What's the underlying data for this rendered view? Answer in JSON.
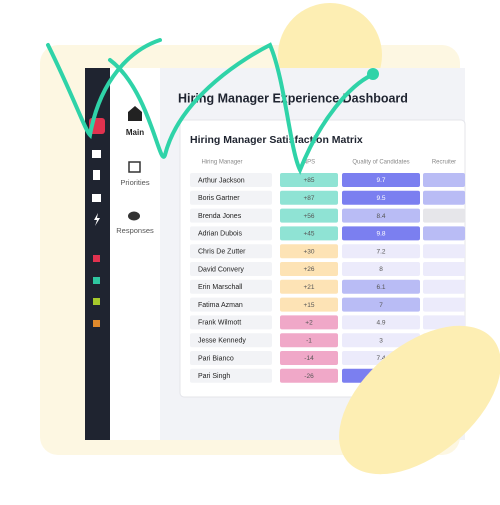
{
  "nav": {
    "items": [
      "Main",
      "Priorities",
      "Responses"
    ]
  },
  "header": {
    "title": "Hiring Manager Experience Dashboard"
  },
  "card": {
    "title": "Hiring Manager Satisfaction Matrix"
  },
  "table": {
    "columns": [
      "Hiring Manager",
      "NPS",
      "Quality of Candidates",
      "Recruiter"
    ],
    "rows": [
      {
        "name": "Arthur Jackson",
        "nps": "+85",
        "quality": "9.7"
      },
      {
        "name": "Boris Gartner",
        "nps": "+87",
        "quality": "9.5"
      },
      {
        "name": "Brenda Jones",
        "nps": "+56",
        "quality": "8.4"
      },
      {
        "name": "Adrian Dubois",
        "nps": "+45",
        "quality": "9.8"
      },
      {
        "name": "Chris De Zutter",
        "nps": "+30",
        "quality": "7.2"
      },
      {
        "name": "David Convery",
        "nps": "+26",
        "quality": "8"
      },
      {
        "name": "Erin Marschall",
        "nps": "+21",
        "quality": "6.1"
      },
      {
        "name": "Fatima Azman",
        "nps": "+15",
        "quality": "7"
      },
      {
        "name": "Frank Wilmott",
        "nps": "+2",
        "quality": "4.9"
      },
      {
        "name": "Jesse Kennedy",
        "nps": "-1",
        "quality": "3"
      },
      {
        "name": "Pari Bianco",
        "nps": "-14",
        "quality": "7.4"
      },
      {
        "name": "Pari Singh",
        "nps": "-26"
      }
    ]
  }
}
